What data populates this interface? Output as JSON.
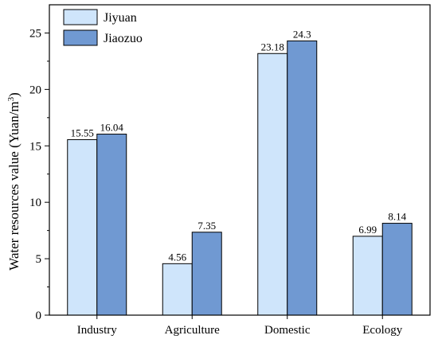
{
  "chart_data": {
    "type": "bar",
    "categories": [
      "Industry",
      "Agriculture",
      "Domestic",
      "Ecology"
    ],
    "series": [
      {
        "name": "Jiyuan",
        "values": [
          15.55,
          4.56,
          23.18,
          6.99
        ],
        "labels": [
          "15.55",
          "4.56",
          "23.18",
          "6.99"
        ],
        "color": "#cfe5fb"
      },
      {
        "name": "Jiaozuo",
        "values": [
          16.04,
          7.35,
          24.3,
          8.14
        ],
        "labels": [
          "16.04",
          "7.35",
          "24.3",
          "8.14"
        ],
        "color": "#7099d2"
      }
    ],
    "title": "",
    "xlabel": "",
    "ylabel": "Water resources value (Yuan/m",
    "ylabel_superscript": "3",
    "ylabel_suffix": ")",
    "ylim": [
      0,
      27.5
    ],
    "yticks": [
      0,
      5,
      10,
      15,
      20,
      25
    ],
    "ytick_labels": [
      "0",
      "5",
      "10",
      "15",
      "20",
      "25"
    ],
    "grid": false,
    "legend_position": "top-left"
  }
}
